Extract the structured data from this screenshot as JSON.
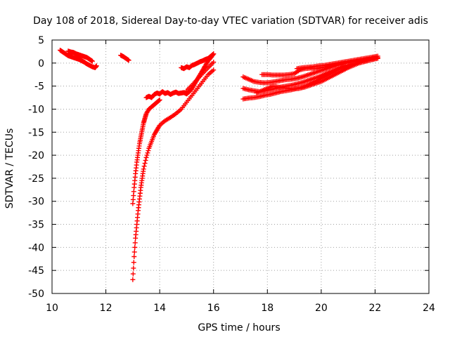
{
  "chart_data": {
    "type": "scatter",
    "title": "Day 108 of 2018, Sidereal Day-to-day VTEC variation (SDTVAR) for receiver adis",
    "xlabel": "GPS time / hours",
    "ylabel": "SDTVAR / TECUs",
    "xlim": [
      10,
      24
    ],
    "ylim": [
      -50,
      5
    ],
    "xticks": [
      10,
      12,
      14,
      16,
      18,
      20,
      22,
      24
    ],
    "yticks": [
      5,
      0,
      -5,
      -10,
      -15,
      -20,
      -25,
      -30,
      -35,
      -40,
      -45,
      -50
    ],
    "xtick_labels": [
      "10",
      "12",
      "14",
      "16",
      "18",
      "20",
      "22",
      "24"
    ],
    "ytick_labels": [
      "5",
      "0",
      "-5",
      "-10",
      "-15",
      "-20",
      "-25",
      "-30",
      "-35",
      "-40",
      "-45",
      "-50"
    ],
    "grid": true,
    "marker": "+",
    "color": "#ff0000",
    "series": [
      {
        "name": "track-1",
        "x": [
          10.3,
          10.4,
          10.5,
          10.6,
          10.7,
          10.8,
          10.9,
          11.0,
          11.1,
          11.2,
          11.3,
          11.4,
          11.5,
          11.6,
          11.65
        ],
        "y": [
          2.8,
          2.4,
          2.0,
          1.6,
          1.4,
          1.2,
          1.0,
          0.8,
          0.5,
          0.2,
          -0.2,
          -0.5,
          -0.8,
          -1.0,
          -0.6
        ]
      },
      {
        "name": "track-2",
        "x": [
          10.6,
          10.7,
          10.8,
          10.9,
          11.0,
          11.1,
          11.2,
          11.3,
          11.4,
          11.5
        ],
        "y": [
          2.6,
          2.4,
          2.3,
          2.0,
          1.8,
          1.6,
          1.4,
          1.2,
          0.8,
          0.4
        ]
      },
      {
        "name": "track-3",
        "x": [
          12.55,
          12.65,
          12.75,
          12.85
        ],
        "y": [
          1.7,
          1.4,
          1.0,
          0.6
        ]
      },
      {
        "name": "track-4",
        "x": [
          13.0,
          13.05,
          13.1,
          13.15,
          13.2,
          13.25,
          13.3,
          13.35,
          13.4,
          13.45,
          13.5,
          13.6,
          13.7,
          13.8,
          13.9,
          14.0
        ],
        "y": [
          -30.5,
          -27.0,
          -24.0,
          -21.5,
          -19.5,
          -17.5,
          -16.0,
          -14.5,
          -13.0,
          -12.0,
          -11.0,
          -10.0,
          -9.5,
          -9.0,
          -8.5,
          -8.0
        ]
      },
      {
        "name": "track-5",
        "x": [
          13.0,
          13.05,
          13.1,
          13.15,
          13.2,
          13.25,
          13.3,
          13.35,
          13.4,
          13.5,
          13.6,
          13.7,
          13.8,
          13.9,
          14.0,
          14.2,
          14.4,
          14.6,
          14.8,
          15.0,
          15.2,
          15.4,
          15.6,
          15.8,
          16.0
        ],
        "y": [
          -47.0,
          -42.0,
          -38.0,
          -35.0,
          -32.0,
          -29.5,
          -27.0,
          -25.0,
          -23.0,
          -20.5,
          -18.5,
          -17.0,
          -15.5,
          -14.5,
          -13.5,
          -12.5,
          -11.8,
          -11.0,
          -10.0,
          -8.5,
          -7.0,
          -5.5,
          -4.0,
          -2.5,
          -1.5
        ]
      },
      {
        "name": "track-6",
        "x": [
          13.5,
          13.6,
          13.7,
          13.8,
          13.9,
          14.0,
          14.1,
          14.2,
          14.3,
          14.4,
          14.5,
          14.6,
          14.7,
          14.8,
          14.9,
          15.0,
          15.1,
          15.2,
          15.3,
          15.4,
          15.5,
          15.6,
          15.7,
          15.8,
          15.9,
          16.0
        ],
        "y": [
          -7.5,
          -7.2,
          -7.5,
          -6.8,
          -6.5,
          -6.7,
          -6.2,
          -6.6,
          -6.4,
          -6.8,
          -6.5,
          -6.3,
          -6.6,
          -6.5,
          -6.4,
          -6.7,
          -6.2,
          -5.5,
          -4.5,
          -3.5,
          -2.5,
          -1.5,
          -0.5,
          0.5,
          1.2,
          2.0
        ]
      },
      {
        "name": "track-7",
        "x": [
          14.8,
          14.9,
          15.0,
          15.1,
          15.2,
          15.3,
          15.4,
          15.5,
          15.6,
          15.7,
          15.8,
          15.9,
          16.0
        ],
        "y": [
          -1.0,
          -1.2,
          -0.8,
          -1.0,
          -0.5,
          -0.3,
          0.0,
          0.3,
          0.5,
          0.8,
          1.0,
          1.5,
          2.0
        ]
      },
      {
        "name": "track-8",
        "x": [
          15.0,
          15.2,
          15.4,
          15.6,
          15.8,
          16.0
        ],
        "y": [
          -6.0,
          -4.8,
          -3.5,
          -2.2,
          -1.0,
          0.2
        ]
      },
      {
        "name": "track-9",
        "x": [
          17.1,
          17.3,
          17.5,
          17.7,
          17.9,
          18.1,
          18.3,
          18.5,
          18.7,
          18.9,
          19.1,
          19.3,
          19.5,
          19.7,
          19.9,
          20.1,
          20.3,
          20.5,
          20.7,
          20.9,
          21.1,
          21.3,
          21.5,
          21.7,
          21.9,
          22.1
        ],
        "y": [
          -3.0,
          -3.5,
          -4.0,
          -4.2,
          -4.3,
          -4.2,
          -4.0,
          -3.8,
          -3.6,
          -3.5,
          -3.3,
          -3.0,
          -2.6,
          -2.2,
          -1.8,
          -1.4,
          -1.0,
          -0.6,
          -0.3,
          0.0,
          0.2,
          0.4,
          0.6,
          0.8,
          1.0,
          1.2
        ]
      },
      {
        "name": "track-10",
        "x": [
          17.1,
          17.3,
          17.5,
          17.7,
          17.9,
          18.1,
          18.3,
          18.5,
          18.7,
          18.9,
          19.1,
          19.3,
          19.5,
          19.7,
          19.9,
          20.1,
          20.3,
          20.5,
          20.7,
          20.9,
          21.1,
          21.3,
          21.5,
          21.7,
          21.9,
          22.1
        ],
        "y": [
          -5.5,
          -5.8,
          -6.0,
          -6.2,
          -6.0,
          -5.8,
          -5.5,
          -5.2,
          -5.0,
          -4.8,
          -4.5,
          -4.2,
          -3.8,
          -3.4,
          -3.0,
          -2.5,
          -2.0,
          -1.5,
          -1.0,
          -0.6,
          -0.3,
          0.0,
          0.3,
          0.5,
          0.8,
          1.0
        ]
      },
      {
        "name": "track-11",
        "x": [
          17.1,
          17.3,
          17.5,
          17.7,
          17.9,
          18.1,
          18.3,
          18.5,
          18.7,
          18.9,
          19.1,
          19.3,
          19.5,
          19.7,
          19.9,
          20.1,
          20.3,
          20.5,
          20.7,
          20.9
        ],
        "y": [
          -7.8,
          -7.6,
          -7.5,
          -7.3,
          -7.0,
          -6.8,
          -6.5,
          -6.2,
          -6.0,
          -5.8,
          -5.5,
          -5.2,
          -4.8,
          -4.2,
          -3.6,
          -3.0,
          -2.4,
          -1.8,
          -1.2,
          -0.8
        ]
      },
      {
        "name": "track-12",
        "x": [
          17.6,
          17.8,
          18.0,
          18.2,
          18.4,
          18.6,
          18.8,
          19.0,
          19.2,
          19.4,
          19.6,
          19.8,
          20.0,
          20.2,
          20.4,
          20.6,
          20.8,
          21.0,
          21.2,
          21.4,
          21.6,
          21.8,
          22.0
        ],
        "y": [
          -6.5,
          -6.0,
          -5.5,
          -5.0,
          -5.2,
          -5.4,
          -5.5,
          -5.6,
          -5.5,
          -5.2,
          -4.8,
          -4.4,
          -4.0,
          -3.4,
          -2.8,
          -2.2,
          -1.6,
          -1.0,
          -0.5,
          0.0,
          0.3,
          0.6,
          0.9
        ]
      },
      {
        "name": "track-13",
        "x": [
          17.8,
          18.0,
          18.2,
          18.4,
          18.6,
          18.8,
          19.0,
          19.2,
          19.4,
          19.6,
          19.8,
          20.0,
          20.2,
          20.4,
          20.6,
          20.8,
          21.0,
          21.2,
          21.4,
          21.6,
          21.8,
          22.0
        ],
        "y": [
          -2.5,
          -2.5,
          -2.6,
          -2.6,
          -2.6,
          -2.5,
          -2.3,
          -1.5,
          -1.2,
          -1.1,
          -1.2,
          -1.0,
          -0.8,
          -0.5,
          -0.3,
          -0.1,
          0.1,
          0.3,
          0.5,
          0.7,
          0.9,
          1.2
        ]
      },
      {
        "name": "track-14",
        "x": [
          19.1,
          19.3,
          19.5,
          19.7,
          19.9,
          20.1,
          20.3,
          20.5,
          20.7,
          20.9,
          21.1,
          21.3,
          21.5,
          21.7,
          21.9,
          22.1
        ],
        "y": [
          -1.2,
          -1.0,
          -0.9,
          -0.8,
          -0.6,
          -0.5,
          -0.3,
          -0.1,
          0.1,
          0.3,
          0.5,
          0.7,
          0.9,
          1.1,
          1.3,
          1.5
        ]
      }
    ]
  }
}
